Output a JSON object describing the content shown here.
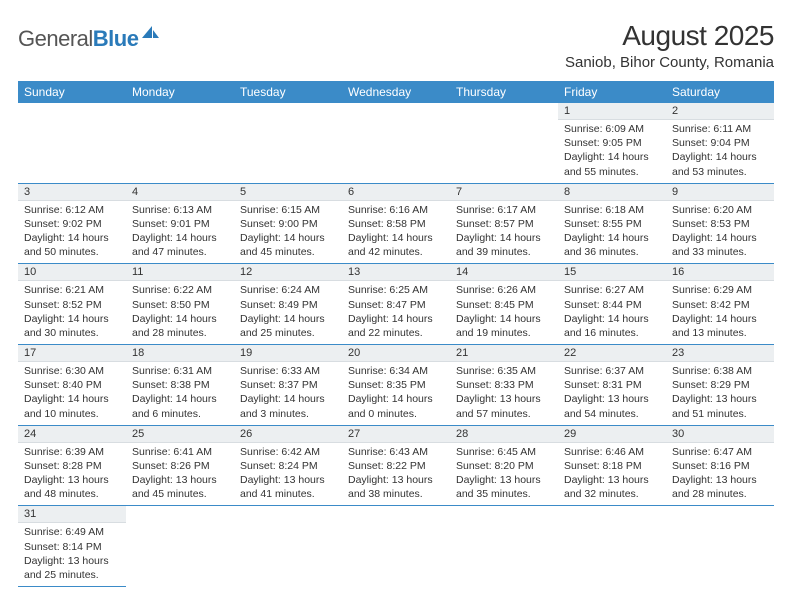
{
  "logo": {
    "general": "General",
    "blue": "Blue"
  },
  "title": "August 2025",
  "location": "Saniob, Bihor County, Romania",
  "weekdays": [
    "Sunday",
    "Monday",
    "Tuesday",
    "Wednesday",
    "Thursday",
    "Friday",
    "Saturday"
  ],
  "colors": {
    "header_bg": "#3b8bc8",
    "daynum_bg": "#eceff1",
    "row_border": "#3b8bc8"
  },
  "weeks": [
    [
      null,
      null,
      null,
      null,
      null,
      {
        "n": "1",
        "sr": "6:09 AM",
        "ss": "9:05 PM",
        "dl": "14 hours and 55 minutes."
      },
      {
        "n": "2",
        "sr": "6:11 AM",
        "ss": "9:04 PM",
        "dl": "14 hours and 53 minutes."
      }
    ],
    [
      {
        "n": "3",
        "sr": "6:12 AM",
        "ss": "9:02 PM",
        "dl": "14 hours and 50 minutes."
      },
      {
        "n": "4",
        "sr": "6:13 AM",
        "ss": "9:01 PM",
        "dl": "14 hours and 47 minutes."
      },
      {
        "n": "5",
        "sr": "6:15 AM",
        "ss": "9:00 PM",
        "dl": "14 hours and 45 minutes."
      },
      {
        "n": "6",
        "sr": "6:16 AM",
        "ss": "8:58 PM",
        "dl": "14 hours and 42 minutes."
      },
      {
        "n": "7",
        "sr": "6:17 AM",
        "ss": "8:57 PM",
        "dl": "14 hours and 39 minutes."
      },
      {
        "n": "8",
        "sr": "6:18 AM",
        "ss": "8:55 PM",
        "dl": "14 hours and 36 minutes."
      },
      {
        "n": "9",
        "sr": "6:20 AM",
        "ss": "8:53 PM",
        "dl": "14 hours and 33 minutes."
      }
    ],
    [
      {
        "n": "10",
        "sr": "6:21 AM",
        "ss": "8:52 PM",
        "dl": "14 hours and 30 minutes."
      },
      {
        "n": "11",
        "sr": "6:22 AM",
        "ss": "8:50 PM",
        "dl": "14 hours and 28 minutes."
      },
      {
        "n": "12",
        "sr": "6:24 AM",
        "ss": "8:49 PM",
        "dl": "14 hours and 25 minutes."
      },
      {
        "n": "13",
        "sr": "6:25 AM",
        "ss": "8:47 PM",
        "dl": "14 hours and 22 minutes."
      },
      {
        "n": "14",
        "sr": "6:26 AM",
        "ss": "8:45 PM",
        "dl": "14 hours and 19 minutes."
      },
      {
        "n": "15",
        "sr": "6:27 AM",
        "ss": "8:44 PM",
        "dl": "14 hours and 16 minutes."
      },
      {
        "n": "16",
        "sr": "6:29 AM",
        "ss": "8:42 PM",
        "dl": "14 hours and 13 minutes."
      }
    ],
    [
      {
        "n": "17",
        "sr": "6:30 AM",
        "ss": "8:40 PM",
        "dl": "14 hours and 10 minutes."
      },
      {
        "n": "18",
        "sr": "6:31 AM",
        "ss": "8:38 PM",
        "dl": "14 hours and 6 minutes."
      },
      {
        "n": "19",
        "sr": "6:33 AM",
        "ss": "8:37 PM",
        "dl": "14 hours and 3 minutes."
      },
      {
        "n": "20",
        "sr": "6:34 AM",
        "ss": "8:35 PM",
        "dl": "14 hours and 0 minutes."
      },
      {
        "n": "21",
        "sr": "6:35 AM",
        "ss": "8:33 PM",
        "dl": "13 hours and 57 minutes."
      },
      {
        "n": "22",
        "sr": "6:37 AM",
        "ss": "8:31 PM",
        "dl": "13 hours and 54 minutes."
      },
      {
        "n": "23",
        "sr": "6:38 AM",
        "ss": "8:29 PM",
        "dl": "13 hours and 51 minutes."
      }
    ],
    [
      {
        "n": "24",
        "sr": "6:39 AM",
        "ss": "8:28 PM",
        "dl": "13 hours and 48 minutes."
      },
      {
        "n": "25",
        "sr": "6:41 AM",
        "ss": "8:26 PM",
        "dl": "13 hours and 45 minutes."
      },
      {
        "n": "26",
        "sr": "6:42 AM",
        "ss": "8:24 PM",
        "dl": "13 hours and 41 minutes."
      },
      {
        "n": "27",
        "sr": "6:43 AM",
        "ss": "8:22 PM",
        "dl": "13 hours and 38 minutes."
      },
      {
        "n": "28",
        "sr": "6:45 AM",
        "ss": "8:20 PM",
        "dl": "13 hours and 35 minutes."
      },
      {
        "n": "29",
        "sr": "6:46 AM",
        "ss": "8:18 PM",
        "dl": "13 hours and 32 minutes."
      },
      {
        "n": "30",
        "sr": "6:47 AM",
        "ss": "8:16 PM",
        "dl": "13 hours and 28 minutes."
      }
    ],
    [
      {
        "n": "31",
        "sr": "6:49 AM",
        "ss": "8:14 PM",
        "dl": "13 hours and 25 minutes."
      },
      null,
      null,
      null,
      null,
      null,
      null
    ]
  ],
  "labels": {
    "sunrise": "Sunrise:",
    "sunset": "Sunset:",
    "daylight": "Daylight:"
  }
}
